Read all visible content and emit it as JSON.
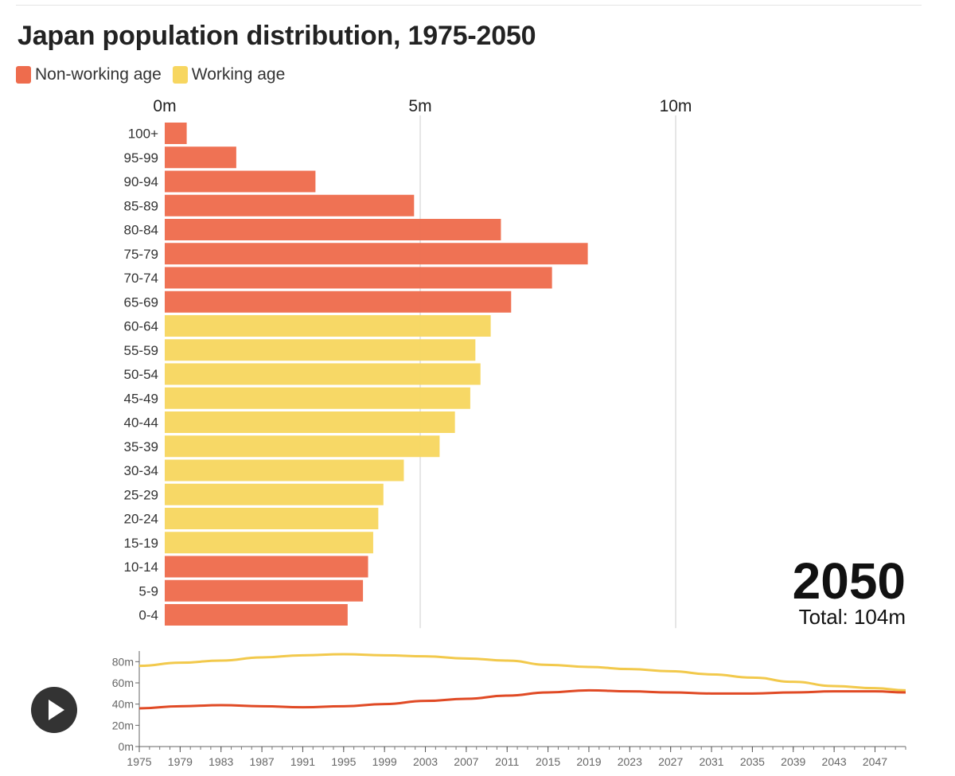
{
  "title": "Japan population distribution, 1975-2050",
  "legend": {
    "non_working": {
      "label": "Non-working age",
      "color": "#ee6c4d"
    },
    "working": {
      "label": "Working age",
      "color": "#f7d660"
    }
  },
  "year": "2050",
  "total": "Total: 104m",
  "play_icon": "play-icon",
  "chart_data": [
    {
      "type": "bar",
      "orientation": "horizontal",
      "title": "Japan population distribution, 1975-2050",
      "xlabel": "",
      "ylabel": "",
      "xlim": [
        0,
        14.5
      ],
      "x_unit": "millions",
      "x_ticks": [
        0,
        5,
        10
      ],
      "x_tick_labels": [
        "0m",
        "5m",
        "10m"
      ],
      "gridlines": [
        5,
        10
      ],
      "categories": [
        "100+",
        "95-99",
        "90-94",
        "85-89",
        "80-84",
        "75-79",
        "70-74",
        "65-69",
        "60-64",
        "55-59",
        "50-54",
        "45-49",
        "40-44",
        "35-39",
        "30-34",
        "25-29",
        "20-24",
        "15-19",
        "10-14",
        "5-9",
        "0-4"
      ],
      "values": [
        0.43,
        1.4,
        2.95,
        4.88,
        6.58,
        8.28,
        7.58,
        6.78,
        6.38,
        6.08,
        6.18,
        5.98,
        5.68,
        5.38,
        4.68,
        4.28,
        4.18,
        4.08,
        3.98,
        3.88,
        3.58
      ],
      "groups": [
        "non_working",
        "non_working",
        "non_working",
        "non_working",
        "non_working",
        "non_working",
        "non_working",
        "non_working",
        "working",
        "working",
        "working",
        "working",
        "working",
        "working",
        "working",
        "working",
        "working",
        "working",
        "non_working",
        "non_working",
        "non_working"
      ]
    },
    {
      "type": "line",
      "title": "",
      "xlabel": "",
      "ylabel": "",
      "x": [
        1975,
        1979,
        1983,
        1987,
        1991,
        1995,
        1999,
        2003,
        2007,
        2011,
        2015,
        2019,
        2023,
        2027,
        2031,
        2035,
        2039,
        2043,
        2047,
        2050
      ],
      "x_tick_labels": [
        "1975",
        "1979",
        "1983",
        "1987",
        "1991",
        "1995",
        "1999",
        "2003",
        "2007",
        "2011",
        "2015",
        "2019",
        "2023",
        "2027",
        "2031",
        "2035",
        "2039",
        "2043",
        "2047"
      ],
      "ylim": [
        0,
        90
      ],
      "y_ticks": [
        0,
        20,
        40,
        60,
        80
      ],
      "y_tick_labels": [
        "0m",
        "20m",
        "40m",
        "60m",
        "80m"
      ],
      "series": [
        {
          "name": "Working age",
          "color": "#f2c94c",
          "values": [
            76,
            79,
            81,
            84,
            86,
            87,
            86,
            85,
            83,
            81,
            77,
            75,
            73,
            71,
            68,
            65,
            61,
            57,
            55,
            53
          ]
        },
        {
          "name": "Non-working age",
          "color": "#e04a25",
          "values": [
            36,
            38,
            39,
            38,
            37,
            38,
            40,
            43,
            45,
            48,
            51,
            53,
            52,
            51,
            50,
            50,
            51,
            52,
            52,
            51
          ]
        }
      ]
    }
  ]
}
